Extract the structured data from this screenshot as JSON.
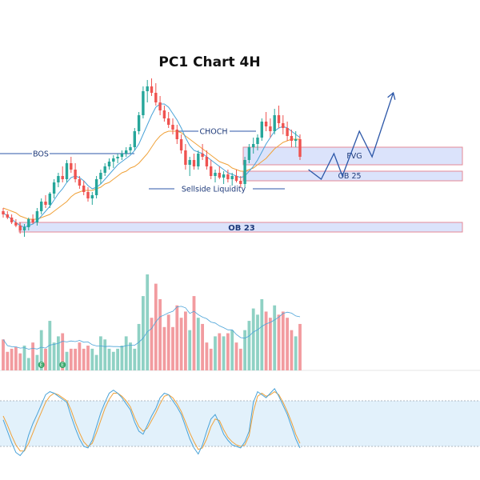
{
  "chart_data": {
    "type": "candlestick",
    "title": "PC1 Chart 4H",
    "colors": {
      "up": "#26a69a",
      "down": "#ef5350",
      "volume_up": "#8fd1c4",
      "volume_down": "#f29b9f",
      "ma_fast": "#4aa3d8",
      "ma_slow": "#f0a23a",
      "stoch_k": "#4aa3d8",
      "stoch_d": "#f0a23a",
      "zone_fill": "#dbe3fb",
      "zone_border": "#e58a97",
      "annotation": "#2c57a8",
      "stoch_band": "#e2f1fb"
    },
    "price_range": [
      0,
      100
    ],
    "candles": [
      {
        "o": 38,
        "h": 40,
        "l": 34,
        "c": 36
      },
      {
        "o": 36,
        "h": 38,
        "l": 33,
        "c": 34
      },
      {
        "o": 34,
        "h": 36,
        "l": 30,
        "c": 31
      },
      {
        "o": 31,
        "h": 33,
        "l": 28,
        "c": 29
      },
      {
        "o": 29,
        "h": 31,
        "l": 24,
        "c": 26
      },
      {
        "o": 26,
        "h": 30,
        "l": 22,
        "c": 28
      },
      {
        "o": 28,
        "h": 34,
        "l": 26,
        "c": 33
      },
      {
        "o": 33,
        "h": 36,
        "l": 30,
        "c": 31
      },
      {
        "o": 31,
        "h": 40,
        "l": 29,
        "c": 38
      },
      {
        "o": 38,
        "h": 46,
        "l": 36,
        "c": 44
      },
      {
        "o": 44,
        "h": 48,
        "l": 40,
        "c": 42
      },
      {
        "o": 42,
        "h": 50,
        "l": 40,
        "c": 49
      },
      {
        "o": 49,
        "h": 58,
        "l": 46,
        "c": 56
      },
      {
        "o": 56,
        "h": 62,
        "l": 53,
        "c": 60
      },
      {
        "o": 60,
        "h": 66,
        "l": 56,
        "c": 58
      },
      {
        "o": 58,
        "h": 70,
        "l": 56,
        "c": 68
      },
      {
        "o": 68,
        "h": 72,
        "l": 62,
        "c": 64
      },
      {
        "o": 64,
        "h": 68,
        "l": 56,
        "c": 58
      },
      {
        "o": 58,
        "h": 60,
        "l": 52,
        "c": 54
      },
      {
        "o": 54,
        "h": 57,
        "l": 48,
        "c": 50
      },
      {
        "o": 50,
        "h": 53,
        "l": 44,
        "c": 46
      },
      {
        "o": 46,
        "h": 50,
        "l": 42,
        "c": 48
      },
      {
        "o": 48,
        "h": 60,
        "l": 46,
        "c": 58
      },
      {
        "o": 58,
        "h": 64,
        "l": 55,
        "c": 62
      },
      {
        "o": 62,
        "h": 68,
        "l": 60,
        "c": 66
      },
      {
        "o": 66,
        "h": 71,
        "l": 64,
        "c": 69
      },
      {
        "o": 69,
        "h": 73,
        "l": 65,
        "c": 71
      },
      {
        "o": 71,
        "h": 74,
        "l": 68,
        "c": 72
      },
      {
        "o": 72,
        "h": 76,
        "l": 70,
        "c": 74
      },
      {
        "o": 74,
        "h": 78,
        "l": 72,
        "c": 76
      },
      {
        "o": 76,
        "h": 80,
        "l": 74,
        "c": 78
      },
      {
        "o": 78,
        "h": 90,
        "l": 76,
        "c": 88
      },
      {
        "o": 88,
        "h": 100,
        "l": 86,
        "c": 98
      },
      {
        "o": 98,
        "h": 116,
        "l": 96,
        "c": 113
      },
      {
        "o": 113,
        "h": 120,
        "l": 106,
        "c": 116
      },
      {
        "o": 116,
        "h": 121,
        "l": 110,
        "c": 112
      },
      {
        "o": 112,
        "h": 118,
        "l": 104,
        "c": 106
      },
      {
        "o": 106,
        "h": 110,
        "l": 98,
        "c": 101
      },
      {
        "o": 101,
        "h": 104,
        "l": 94,
        "c": 96
      },
      {
        "o": 96,
        "h": 100,
        "l": 90,
        "c": 92
      },
      {
        "o": 92,
        "h": 96,
        "l": 86,
        "c": 89
      },
      {
        "o": 89,
        "h": 92,
        "l": 80,
        "c": 83
      },
      {
        "o": 83,
        "h": 86,
        "l": 74,
        "c": 76
      },
      {
        "o": 76,
        "h": 80,
        "l": 64,
        "c": 67
      },
      {
        "o": 67,
        "h": 72,
        "l": 60,
        "c": 70
      },
      {
        "o": 70,
        "h": 74,
        "l": 64,
        "c": 66
      },
      {
        "o": 66,
        "h": 76,
        "l": 64,
        "c": 74
      },
      {
        "o": 74,
        "h": 80,
        "l": 70,
        "c": 72
      },
      {
        "o": 72,
        "h": 76,
        "l": 64,
        "c": 66
      },
      {
        "o": 66,
        "h": 70,
        "l": 58,
        "c": 60
      },
      {
        "o": 60,
        "h": 64,
        "l": 56,
        "c": 62
      },
      {
        "o": 62,
        "h": 66,
        "l": 58,
        "c": 59
      },
      {
        "o": 59,
        "h": 63,
        "l": 55,
        "c": 61
      },
      {
        "o": 61,
        "h": 64,
        "l": 56,
        "c": 58
      },
      {
        "o": 58,
        "h": 62,
        "l": 54,
        "c": 60
      },
      {
        "o": 60,
        "h": 64,
        "l": 56,
        "c": 57
      },
      {
        "o": 57,
        "h": 60,
        "l": 53,
        "c": 55
      },
      {
        "o": 55,
        "h": 72,
        "l": 53,
        "c": 70
      },
      {
        "o": 70,
        "h": 80,
        "l": 68,
        "c": 78
      },
      {
        "o": 78,
        "h": 84,
        "l": 74,
        "c": 80
      },
      {
        "o": 80,
        "h": 86,
        "l": 76,
        "c": 84
      },
      {
        "o": 84,
        "h": 96,
        "l": 82,
        "c": 94
      },
      {
        "o": 94,
        "h": 100,
        "l": 88,
        "c": 91
      },
      {
        "o": 91,
        "h": 96,
        "l": 84,
        "c": 88
      },
      {
        "o": 88,
        "h": 102,
        "l": 86,
        "c": 98
      },
      {
        "o": 98,
        "h": 104,
        "l": 90,
        "c": 93
      },
      {
        "o": 93,
        "h": 98,
        "l": 86,
        "c": 90
      },
      {
        "o": 90,
        "h": 94,
        "l": 82,
        "c": 85
      },
      {
        "o": 85,
        "h": 89,
        "l": 78,
        "c": 82
      },
      {
        "o": 82,
        "h": 88,
        "l": 78,
        "c": 83
      },
      {
        "o": 83,
        "h": 86,
        "l": 70,
        "c": 72
      }
    ],
    "ma_fast": [
      37,
      35,
      33,
      31,
      29,
      28,
      29,
      30,
      32,
      35,
      38,
      41,
      45,
      49,
      52,
      56,
      59,
      60,
      59,
      57,
      54,
      52,
      53,
      55,
      58,
      61,
      64,
      67,
      69,
      71,
      73,
      76,
      80,
      86,
      92,
      98,
      103,
      105,
      105,
      103,
      99,
      95,
      90,
      84,
      79,
      76,
      75,
      74,
      72,
      70,
      68,
      66,
      64,
      62,
      61,
      60,
      59,
      60,
      63,
      66,
      70,
      75,
      80,
      84,
      88,
      90,
      91,
      90,
      88,
      86,
      84
    ],
    "ma_slow": [
      40,
      39,
      38,
      37,
      35,
      34,
      33,
      33,
      33,
      34,
      35,
      36,
      38,
      40,
      42,
      44,
      47,
      49,
      50,
      51,
      51,
      51,
      52,
      53,
      55,
      56,
      58,
      60,
      62,
      63,
      65,
      66,
      68,
      71,
      74,
      78,
      82,
      85,
      87,
      88,
      88,
      88,
      87,
      85,
      83,
      81,
      79,
      77,
      75,
      73,
      71,
      69,
      68,
      67,
      65,
      64,
      63,
      63,
      64,
      65,
      67,
      69,
      71,
      74,
      77,
      79,
      81,
      82,
      83,
      83,
      83
    ],
    "volume": [
      20,
      12,
      14,
      15,
      11,
      16,
      8,
      18,
      10,
      26,
      14,
      32,
      18,
      22,
      24,
      12,
      14,
      14,
      18,
      14,
      16,
      14,
      10,
      22,
      20,
      14,
      12,
      14,
      16,
      22,
      18,
      14,
      30,
      48,
      62,
      34,
      56,
      46,
      28,
      36,
      28,
      42,
      34,
      38,
      26,
      48,
      34,
      30,
      18,
      14,
      22,
      24,
      22,
      24,
      26,
      18,
      14,
      26,
      32,
      40,
      36,
      46,
      38,
      34,
      42,
      36,
      38,
      34,
      26,
      22,
      30
    ],
    "stoch_k": [
      55,
      40,
      25,
      12,
      8,
      15,
      35,
      50,
      62,
      75,
      88,
      92,
      90,
      86,
      82,
      78,
      60,
      44,
      30,
      20,
      18,
      28,
      46,
      64,
      78,
      90,
      94,
      90,
      84,
      76,
      68,
      52,
      40,
      36,
      48,
      60,
      70,
      84,
      90,
      88,
      80,
      72,
      62,
      46,
      30,
      18,
      10,
      22,
      40,
      56,
      62,
      50,
      36,
      28,
      22,
      20,
      18,
      26,
      40,
      78,
      92,
      88,
      84,
      90,
      96,
      86,
      74,
      62,
      46,
      30,
      18
    ],
    "stoch_d": [
      60,
      48,
      34,
      22,
      14,
      14,
      24,
      38,
      52,
      65,
      78,
      86,
      90,
      88,
      84,
      80,
      68,
      52,
      38,
      26,
      20,
      24,
      38,
      54,
      70,
      82,
      90,
      90,
      86,
      80,
      72,
      58,
      46,
      40,
      44,
      54,
      64,
      76,
      86,
      88,
      84,
      76,
      66,
      52,
      38,
      26,
      16,
      18,
      30,
      46,
      56,
      54,
      42,
      32,
      26,
      22,
      20,
      22,
      34,
      66,
      86,
      90,
      86,
      88,
      92,
      88,
      78,
      66,
      52,
      36,
      24
    ],
    "stoch_levels": [
      80,
      20
    ],
    "forecast_path": [
      [
        72,
        64
      ],
      [
        75,
        58
      ],
      [
        78,
        74
      ],
      [
        80,
        60
      ],
      [
        84,
        88
      ],
      [
        87,
        72
      ],
      [
        92,
        112
      ]
    ],
    "annotations": [
      {
        "label": "BOS",
        "type": "level",
        "price": 74
      },
      {
        "label": "CHOCH",
        "type": "level",
        "price": 88
      },
      {
        "label": "Sellside Liquidity",
        "type": "level",
        "price": 52
      },
      {
        "label": "FVG",
        "type": "zone",
        "from": 67,
        "to": 78
      },
      {
        "label": "OB 25",
        "type": "zone",
        "from": 57,
        "to": 63
      },
      {
        "label": "OB 23",
        "type": "zone",
        "from": 25,
        "to": 31
      }
    ],
    "markers": [
      "E",
      "E"
    ]
  }
}
